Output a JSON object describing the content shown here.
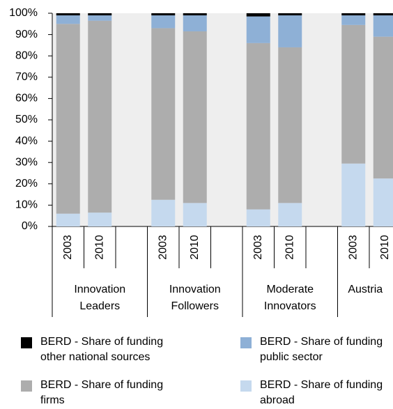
{
  "chart_data": {
    "type": "stacked_bar",
    "categories": [
      "2003",
      "2010",
      null,
      "2003",
      "2010",
      null,
      "2003",
      "2010",
      null,
      "2003",
      "2010"
    ],
    "groups": [
      {
        "label": [
          "Innovation",
          "Leaders"
        ],
        "start": 0,
        "end": 2
      },
      {
        "label": [
          "Innovation",
          "Followers"
        ],
        "start": 3,
        "end": 5
      },
      {
        "label": [
          "Moderate",
          "Innovators"
        ],
        "start": 6,
        "end": 8
      },
      {
        "label": [
          "Austria"
        ],
        "start": 9,
        "end": 10
      }
    ],
    "series": [
      {
        "name": "BERD - Share of funding abroad",
        "color": "#c5d9ee",
        "values": [
          6,
          6.5,
          null,
          12.5,
          11,
          null,
          8,
          11,
          null,
          29.5,
          22.5
        ]
      },
      {
        "name": "BERD - Share of funding firms",
        "color": "#adadad",
        "values": [
          89,
          90,
          null,
          80.5,
          80.5,
          null,
          78,
          73,
          null,
          65,
          66.5
        ]
      },
      {
        "name": "BERD - Share of funding public sector",
        "color": "#8eb0d6",
        "values": [
          4,
          2.5,
          null,
          6,
          7.5,
          null,
          12.5,
          15,
          null,
          4.5,
          10
        ]
      },
      {
        "name": "BERD - Share of funding other national sources",
        "color": "#000000",
        "values": [
          1,
          1,
          null,
          1,
          1,
          null,
          1.5,
          1,
          null,
          1,
          1
        ]
      }
    ],
    "ylim": [
      0,
      100
    ],
    "yticks": [
      {
        "value": 0,
        "label": "0%"
      },
      {
        "value": 10,
        "label": "10%"
      },
      {
        "value": 20,
        "label": "20%"
      },
      {
        "value": 30,
        "label": "30%"
      },
      {
        "value": 40,
        "label": "40%"
      },
      {
        "value": 50,
        "label": "50%"
      },
      {
        "value": 60,
        "label": "60%"
      },
      {
        "value": 70,
        "label": "70%"
      },
      {
        "value": 80,
        "label": "80%"
      },
      {
        "value": 90,
        "label": "90%"
      },
      {
        "value": 100,
        "label": "100%"
      }
    ]
  }
}
